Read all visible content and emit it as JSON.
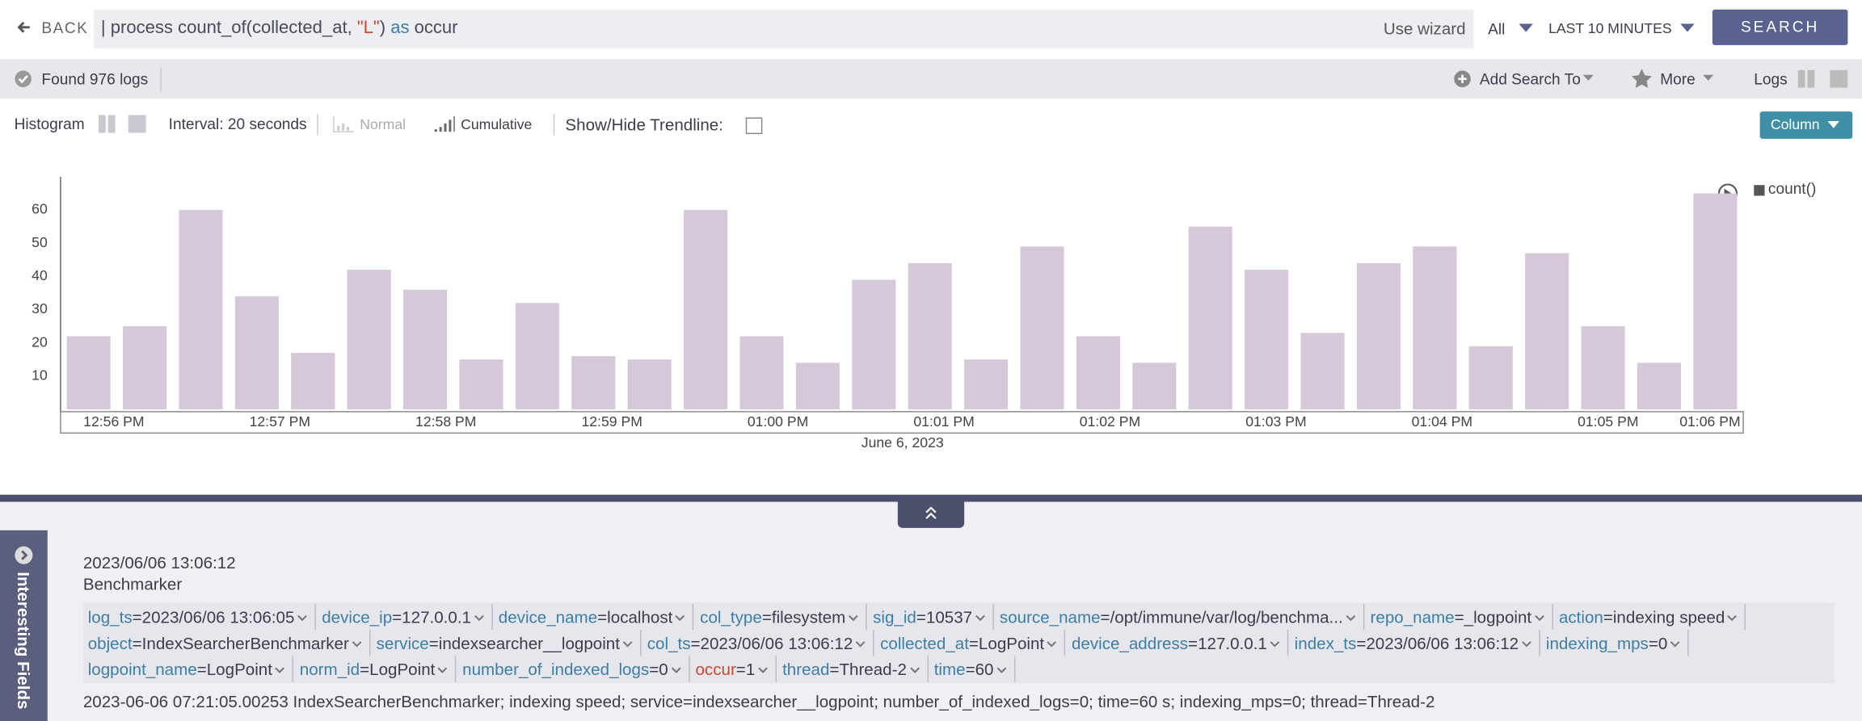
{
  "toolbar": {
    "back": "BACK",
    "query_tokens": [
      {
        "text": "| process count_of(collected_at, ",
        "color": "#4a4a5c"
      },
      {
        "text": "\"L\"",
        "color": "#d0452d"
      },
      {
        "text": ") ",
        "color": "#4a4a5c"
      },
      {
        "text": "as",
        "color": "#3d7ea6"
      },
      {
        "text": " occur",
        "color": "#4a4a5c"
      }
    ],
    "wizard": "Use wizard",
    "scope": "All",
    "time_range": "LAST 10 MINUTES",
    "search": "SEARCH"
  },
  "status": {
    "found": "Found 976 logs",
    "add_search": "Add Search To",
    "more": "More",
    "logs": "Logs"
  },
  "options": {
    "histogram": "Histogram",
    "interval": "Interval: 20 seconds",
    "normal": "Normal",
    "cumulative": "Cumulative",
    "trendline": "Show/Hide Trendline:",
    "chart_type_button": "Column"
  },
  "chart_data": {
    "type": "bar",
    "series": [
      {
        "name": "count()",
        "color": "#d5c9d9",
        "values": [
          22,
          25,
          60,
          34,
          17,
          42,
          36,
          15,
          32,
          16,
          15,
          60,
          22,
          14,
          39,
          44,
          15,
          49,
          22,
          14,
          55,
          42,
          23,
          44,
          49,
          19,
          47,
          25,
          14,
          65
        ]
      }
    ],
    "x_labels": [
      "12:56 PM",
      "12:57 PM",
      "12:58 PM",
      "12:59 PM",
      "01:00 PM",
      "01:01 PM",
      "01:02 PM",
      "01:03 PM",
      "01:04 PM",
      "01:05 PM",
      "01:06 PM"
    ],
    "xlabel": "June 6, 2023",
    "ylim": [
      0,
      70
    ],
    "yticks": [
      10,
      20,
      30,
      40,
      50,
      60
    ],
    "grid": false,
    "legend": "right"
  },
  "sidebar": {
    "title": "Interesting Fields"
  },
  "log": {
    "timestamp": "2023/06/06 13:06:12",
    "source": "Benchmarker",
    "separator": "=",
    "fields": [
      {
        "key": "log_ts",
        "value": "2023/06/06 13:06:05"
      },
      {
        "key": "device_ip",
        "value": "127.0.0.1"
      },
      {
        "key": "device_name",
        "value": "localhost"
      },
      {
        "key": "col_type",
        "value": "filesystem"
      },
      {
        "key": "sig_id",
        "value": "10537"
      },
      {
        "key": "source_name",
        "value": "/opt/immune/var/log/benchma..."
      },
      {
        "key": "repo_name",
        "value": "_logpoint"
      },
      {
        "key": "action",
        "value": "indexing speed"
      },
      {
        "key": "object",
        "value": "IndexSearcherBenchmarker"
      },
      {
        "key": "service",
        "value": "indexsearcher__logpoint"
      },
      {
        "key": "col_ts",
        "value": "2023/06/06 13:06:12"
      },
      {
        "key": "collected_at",
        "value": "LogPoint"
      },
      {
        "key": "device_address",
        "value": "127.0.0.1"
      },
      {
        "key": "index_ts",
        "value": "2023/06/06 13:06:12"
      },
      {
        "key": "indexing_mps",
        "value": "0"
      },
      {
        "key": "logpoint_name",
        "value": "LogPoint"
      },
      {
        "key": "norm_id",
        "value": "LogPoint"
      },
      {
        "key": "number_of_indexed_logs",
        "value": "0"
      },
      {
        "key": "occur",
        "value": "1",
        "color": "#d0452d"
      },
      {
        "key": "thread",
        "value": "Thread-2"
      },
      {
        "key": "time",
        "value": "60"
      }
    ],
    "raw": "2023-06-06 07:21:05.00253 IndexSearcherBenchmarker; indexing speed; service=indexsearcher__logpoint; number_of_indexed_logs=0; time=60 s; indexing_mps=0; thread=Thread-2"
  }
}
